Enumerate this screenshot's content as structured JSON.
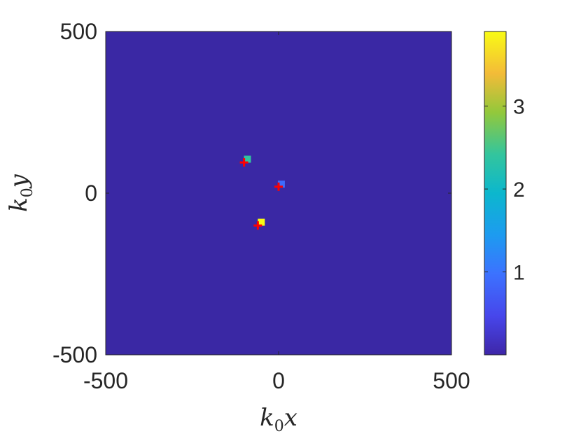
{
  "chart_data": {
    "type": "heatmap",
    "title": "",
    "xlabel": {
      "base": "k",
      "sub": "0",
      "var": "x"
    },
    "ylabel": {
      "base": "k",
      "sub": "0",
      "var": "y"
    },
    "xlim": [
      -500,
      500
    ],
    "ylim": [
      -500,
      500
    ],
    "xticks": [
      -500,
      0,
      500
    ],
    "yticks": [
      -500,
      0,
      500
    ],
    "xtick_labels": [
      "-500",
      "0",
      "500"
    ],
    "ytick_labels": [
      "-500",
      "0",
      "500"
    ],
    "background_value": 0,
    "colormap": "parula",
    "colorbar": {
      "range": [
        0,
        3.9
      ],
      "ticks": [
        1,
        2,
        3
      ],
      "tick_labels": [
        "1",
        "2",
        "3"
      ]
    },
    "cells": [
      {
        "x": -90,
        "y": 105,
        "value": 2.4
      },
      {
        "x": 8,
        "y": 28,
        "value": 0.9
      },
      {
        "x": -50,
        "y": -90,
        "value": 3.9
      }
    ],
    "markers": [
      {
        "x": -100,
        "y": 95,
        "color": "#ff0000",
        "symbol": "+"
      },
      {
        "x": 0,
        "y": 20,
        "color": "#ff0000",
        "symbol": "+"
      },
      {
        "x": -60,
        "y": -100,
        "color": "#ff0000",
        "symbol": "+"
      }
    ]
  }
}
